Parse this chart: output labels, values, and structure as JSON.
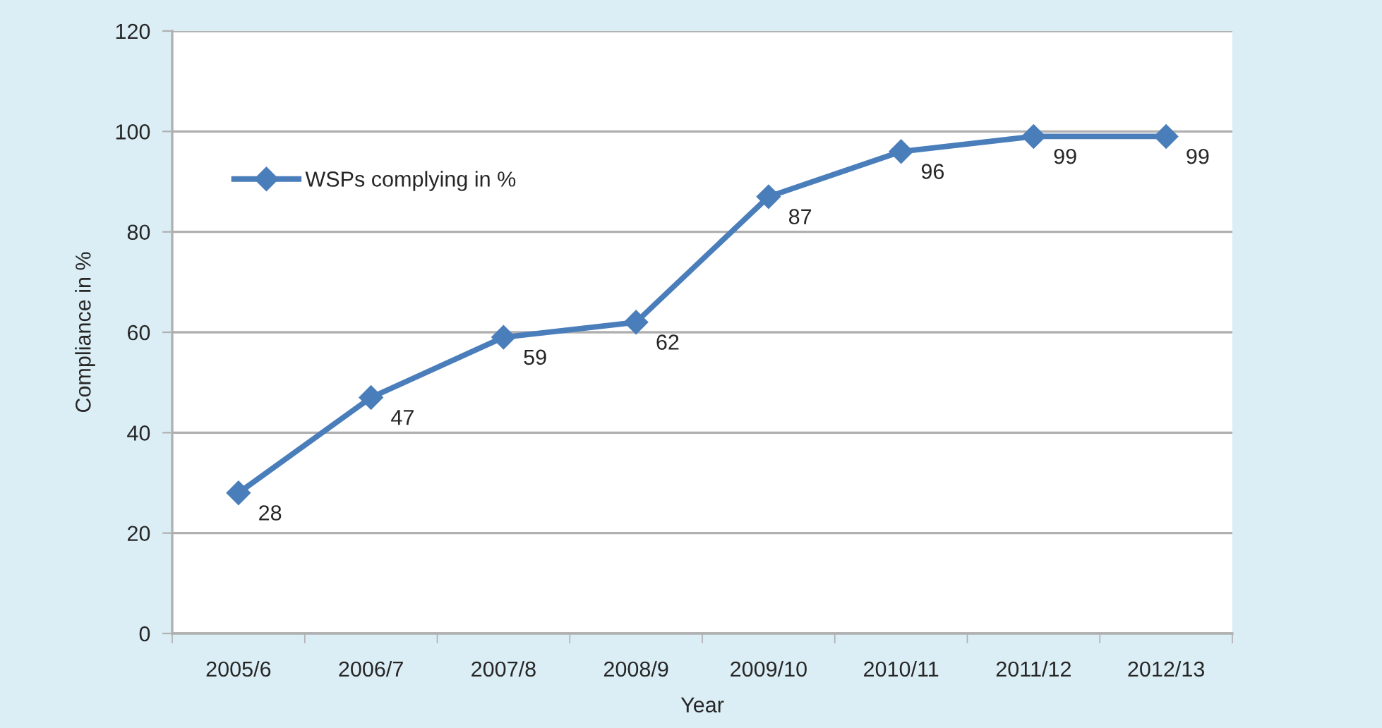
{
  "chart_data": {
    "type": "line",
    "xlabel": "Year",
    "ylabel": "Compliance in %",
    "categories": [
      "2005/6",
      "2006/7",
      "2007/8",
      "2008/9",
      "2009/10",
      "2010/11",
      "2011/12",
      "2012/13"
    ],
    "series": [
      {
        "name": "WSPs complying in %",
        "color": "#4a7ebb",
        "values": [
          28,
          47,
          59,
          62,
          87,
          96,
          99,
          99
        ]
      }
    ],
    "ylim": [
      0,
      120
    ],
    "yticks": [
      0,
      20,
      40,
      60,
      80,
      100,
      120
    ],
    "grid": "y",
    "legend": "top left",
    "marker": "diamond",
    "line_style": "solid",
    "data_labels": true
  }
}
